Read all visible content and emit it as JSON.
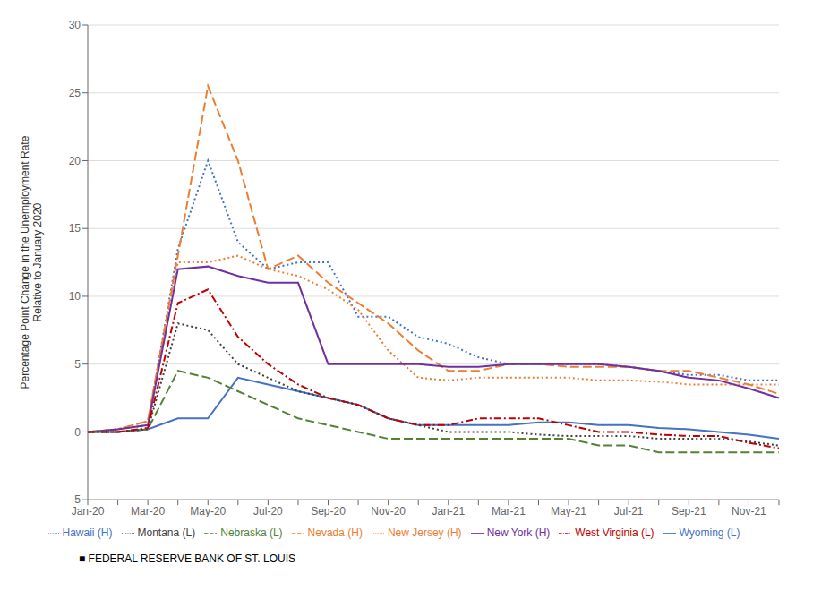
{
  "chart_data": {
    "type": "line",
    "ylabel": "Percentage Point Change in the Unemployment Rate\nRelative to January 2020",
    "annotations": [
      "■  FEDERAL RESERVE BANK OF ST. LOUIS"
    ],
    "categories": [
      "Jan-20",
      null,
      "Mar-20",
      null,
      "May-20",
      null,
      "Jul-20",
      null,
      "Sep-20",
      null,
      "Nov-20",
      null,
      "Jan-21",
      null,
      "Mar-21",
      null,
      "May-21",
      null,
      "Jul-21",
      null,
      "Sep-21",
      null,
      "Nov-21",
      null
    ],
    "ylim": [
      -5,
      30
    ],
    "yticks": [
      -5,
      0,
      5,
      10,
      15,
      20,
      25,
      30
    ],
    "grid": true,
    "legend": "bottom",
    "series": [
      {
        "name": "Hawaii (H)",
        "color": "#4472C4",
        "line_style": "dotted",
        "values": [
          0,
          0.2,
          0.5,
          13.5,
          20.0,
          14.0,
          12.0,
          12.5,
          12.5,
          8.5,
          8.5,
          7.0,
          6.5,
          5.5,
          5.0,
          5.0,
          5.0,
          5.0,
          4.8,
          4.5,
          4.2,
          4.2,
          3.8,
          3.8
        ]
      },
      {
        "name": "Nevada (H)",
        "color": "#ED7D31",
        "line_style": "dashed",
        "values": [
          0,
          0.2,
          0.8,
          13.0,
          25.5,
          20.0,
          12.0,
          13.0,
          11.0,
          9.5,
          8.0,
          6.0,
          4.5,
          4.5,
          5.0,
          5.0,
          4.8,
          4.8,
          4.8,
          4.5,
          4.5,
          4.0,
          3.5,
          2.8
        ]
      },
      {
        "name": "New Jersey (H)",
        "color": "#ED7D31",
        "line_style": "dotted",
        "values": [
          0,
          0.2,
          0.8,
          12.5,
          12.5,
          13.0,
          12.0,
          11.5,
          10.5,
          9.0,
          6.0,
          4.0,
          3.8,
          4.0,
          4.0,
          4.0,
          4.0,
          3.8,
          3.8,
          3.7,
          3.5,
          3.5,
          3.5,
          3.5
        ]
      },
      {
        "name": "New York (H)",
        "color": "#7030A0",
        "line_style": "solid",
        "values": [
          0,
          0.2,
          0.5,
          12.0,
          12.2,
          11.5,
          11.0,
          11.0,
          5.0,
          5.0,
          5.0,
          5.0,
          4.8,
          4.8,
          5.0,
          5.0,
          5.0,
          5.0,
          4.8,
          4.5,
          4.0,
          3.8,
          3.2,
          2.5
        ]
      },
      {
        "name": "Wyoming (L)",
        "color": "#4472C4",
        "line_style": "solid",
        "values": [
          0,
          0.0,
          0.2,
          1.0,
          1.0,
          4.0,
          3.5,
          3.0,
          2.5,
          2.0,
          1.0,
          0.5,
          0.5,
          0.5,
          0.5,
          0.7,
          0.7,
          0.5,
          0.5,
          0.3,
          0.2,
          0.0,
          -0.2,
          -0.5
        ]
      },
      {
        "name": "Nebraska (L)",
        "color": "#548235",
        "line_style": "dashed",
        "values": [
          0,
          0.0,
          0.2,
          4.5,
          4.0,
          3.0,
          2.0,
          1.0,
          0.5,
          0.0,
          -0.5,
          -0.5,
          -0.5,
          -0.5,
          -0.5,
          -0.5,
          -0.5,
          -1.0,
          -1.0,
          -1.5,
          -1.5,
          -1.5,
          -1.5,
          -1.5
        ]
      },
      {
        "name": "Montana (L)",
        "color": "#404040",
        "line_style": "dotted",
        "values": [
          0,
          0.0,
          0.2,
          8.0,
          7.5,
          5.0,
          4.0,
          3.0,
          2.5,
          2.0,
          1.0,
          0.5,
          0.0,
          0.0,
          0.0,
          -0.2,
          -0.3,
          -0.3,
          -0.3,
          -0.5,
          -0.5,
          -0.5,
          -0.7,
          -1.0
        ]
      },
      {
        "name": "West Virginia (L)",
        "color": "#C00000",
        "line_style": "dashdot",
        "values": [
          0,
          0.0,
          0.3,
          9.5,
          10.5,
          7.0,
          5.0,
          3.5,
          2.5,
          2.0,
          1.0,
          0.5,
          0.5,
          1.0,
          1.0,
          1.0,
          0.5,
          0.0,
          0.0,
          -0.2,
          -0.3,
          -0.3,
          -0.8,
          -1.2
        ]
      }
    ]
  }
}
